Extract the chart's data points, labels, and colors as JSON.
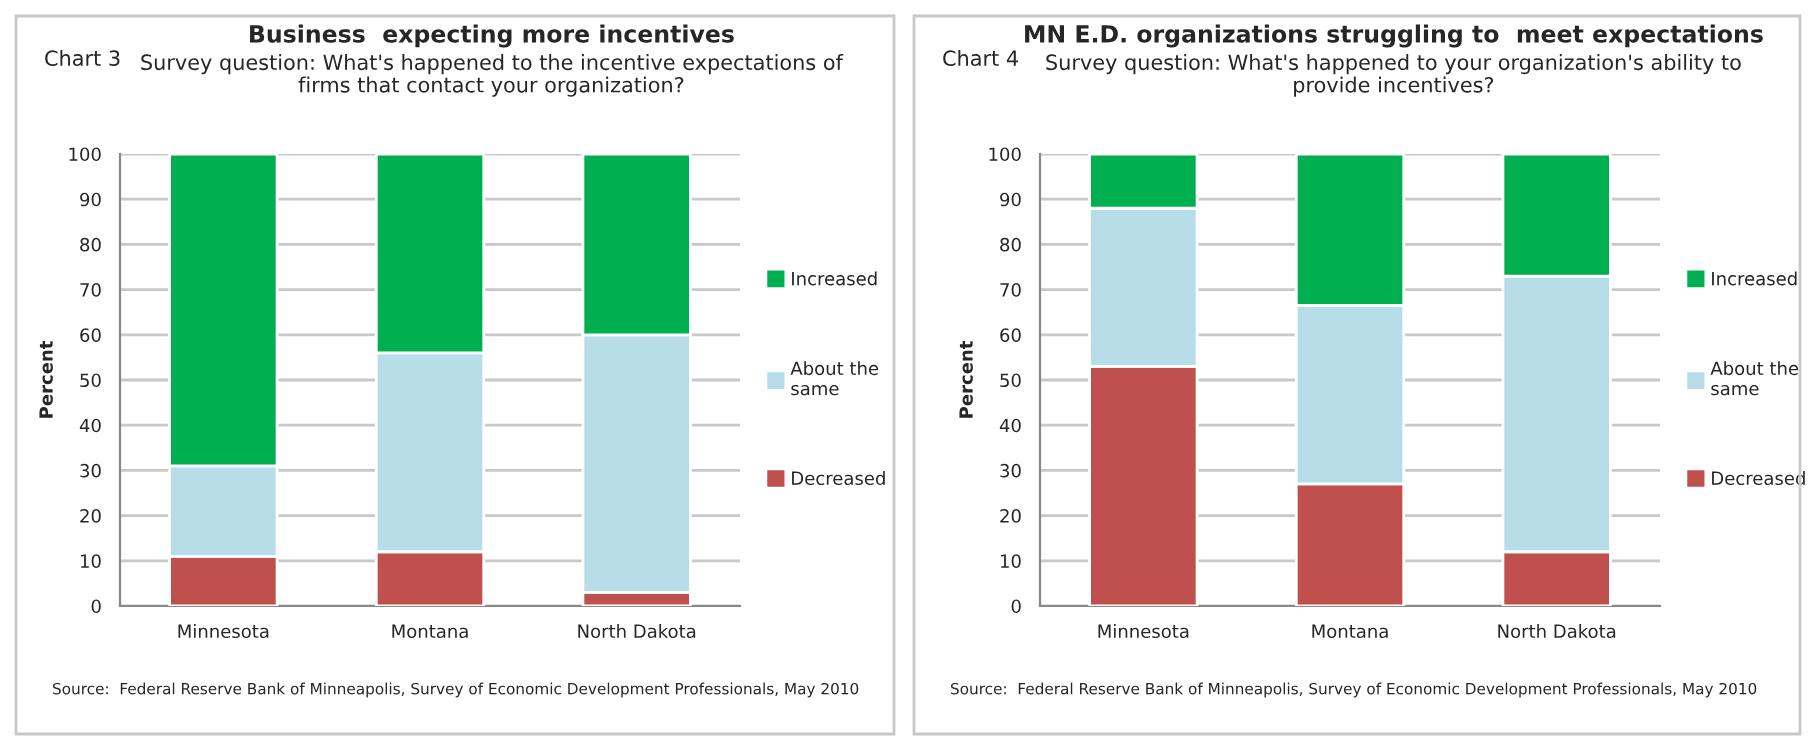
{
  "chart_data": [
    {
      "type": "bar",
      "stacked": true,
      "title": "Business  expecting more incentives",
      "subtitle": "Survey question: What's happened to the incentive expectations of\nfirms that contact your organization?",
      "ylabel": "Percent",
      "categories": [
        "Minnesota",
        "Montana",
        "North Dakota"
      ],
      "series": [
        {
          "name": "Decreased",
          "color": "#c0504d",
          "values": [
            11,
            12,
            3
          ]
        },
        {
          "name": "About the same",
          "color": "#b7dde8",
          "values": [
            20,
            44,
            57
          ]
        },
        {
          "name": "Increased",
          "color": "#00b050",
          "values": [
            69,
            44,
            40
          ]
        }
      ],
      "ylim": [
        0,
        100
      ],
      "yticks": [
        0,
        10,
        20,
        30,
        40,
        50,
        60,
        70,
        80,
        90,
        100
      ],
      "grid": "y",
      "legend": "right",
      "annotations": [
        "Chart 3",
        "Source:  Federal Reserve Bank of Minneapolis, Survey of Economic Development Professionals, May 2010"
      ]
    },
    {
      "type": "bar",
      "stacked": true,
      "title": "MN E.D. organizations struggling to  meet expectations",
      "subtitle": "Survey question: What's happened to your organization's ability to\nprovide incentives?",
      "ylabel": "Percent",
      "categories": [
        "Minnesota",
        "Montana",
        "North Dakota"
      ],
      "series": [
        {
          "name": "Decreased",
          "color": "#c0504d",
          "values": [
            53,
            27,
            12
          ]
        },
        {
          "name": "About the same",
          "color": "#b7dde8",
          "values": [
            35,
            39.5,
            61
          ]
        },
        {
          "name": "Increased",
          "color": "#00b050",
          "values": [
            12,
            33.5,
            27
          ]
        }
      ],
      "ylim": [
        0,
        100
      ],
      "yticks": [
        0,
        10,
        20,
        30,
        40,
        50,
        60,
        70,
        80,
        90,
        100
      ],
      "grid": "y",
      "legend": "right",
      "annotations": [
        "Chart 4",
        "Source:  Federal Reserve Bank of Minneapolis, Survey of Economic Development Professionals, May 2010"
      ]
    }
  ]
}
